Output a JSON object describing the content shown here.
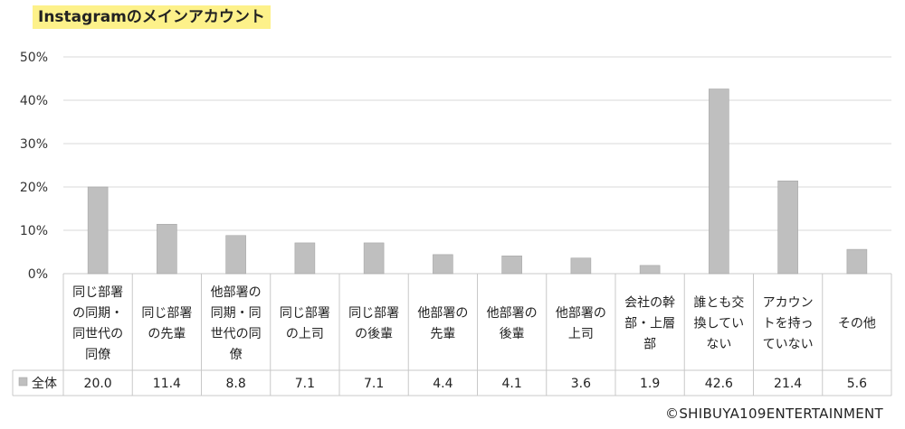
{
  "title": "Instagramのメインアカウント",
  "copyright": "©SHIBUYA109ENTERTAINMENT",
  "colors": {
    "bar": "#bfbfbf",
    "bar_stroke": "#a6a6a6",
    "grid": "#d9d9d9",
    "table_line": "#c8c8c8"
  },
  "chart_data": {
    "type": "bar",
    "categories": [
      [
        "同じ部署",
        "の同期・",
        "同世代の",
        "同僚"
      ],
      [
        "同じ部署",
        "の先輩"
      ],
      [
        "他部署の",
        "同期・同",
        "世代の同",
        "僚"
      ],
      [
        "同じ部署",
        "の上司"
      ],
      [
        "同じ部署",
        "の後輩"
      ],
      [
        "他部署の",
        "先輩"
      ],
      [
        "他部署の",
        "後輩"
      ],
      [
        "他部署の",
        "上司"
      ],
      [
        "会社の幹",
        "部・上層",
        "部"
      ],
      [
        "誰とも交",
        "換してい",
        "ない"
      ],
      [
        "アカウン",
        "トを持っ",
        "ていない"
      ],
      [
        "その他"
      ]
    ],
    "series": [
      {
        "name": "全体",
        "values": [
          20.0,
          11.4,
          8.8,
          7.1,
          7.1,
          4.4,
          4.1,
          3.6,
          1.9,
          42.6,
          21.4,
          5.6
        ],
        "labels": [
          "20.0",
          "11.4",
          "8.8",
          "7.1",
          "7.1",
          "4.4",
          "4.1",
          "3.6",
          "1.9",
          "42.6",
          "21.4",
          "5.6"
        ]
      }
    ],
    "ylim": [
      0,
      50
    ],
    "yticks": [
      "0%",
      "10%",
      "20%",
      "30%",
      "40%",
      "50%"
    ],
    "ytick_values": [
      0,
      10,
      20,
      30,
      40,
      50
    ],
    "grid": true,
    "legend": "data-table-row"
  }
}
